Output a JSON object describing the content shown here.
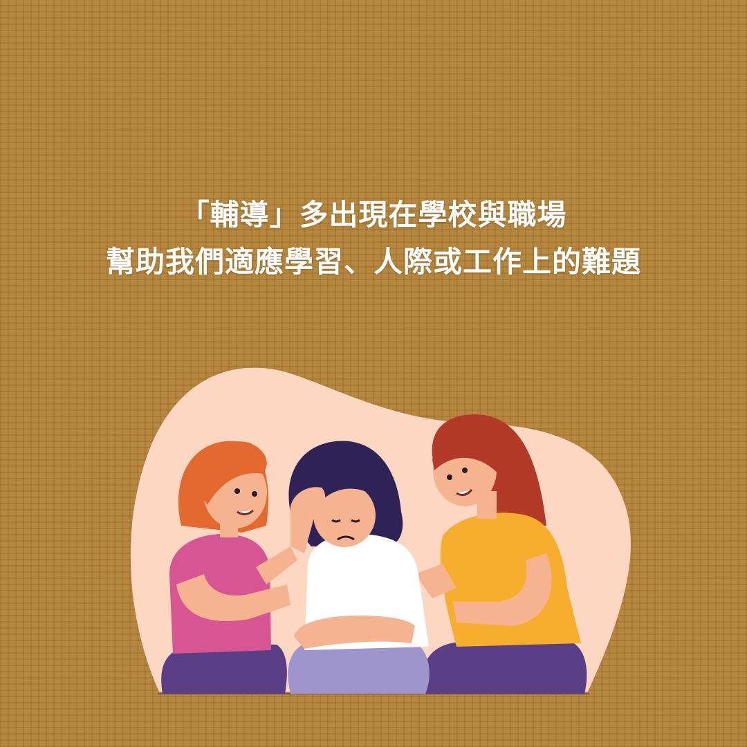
{
  "headline": {
    "line1": "「輔導」多出現在學校與職場",
    "line2": "幫助我們適應學習、人際或工作上的難題"
  },
  "illustration": {
    "subject": "three-friends-comforting-icon",
    "colors": {
      "blob": "#fdd7c2",
      "skin": "#f6b38f",
      "left_hair": "#e4692f",
      "left_shirt": "#d85594",
      "middle_hair": "#2e2257",
      "middle_shirt": "#ffffff",
      "middle_shorts": "#9e95cf",
      "right_hair": "#b33a26",
      "right_shirt": "#f7ae2d",
      "pants": "#5b3f86"
    }
  }
}
